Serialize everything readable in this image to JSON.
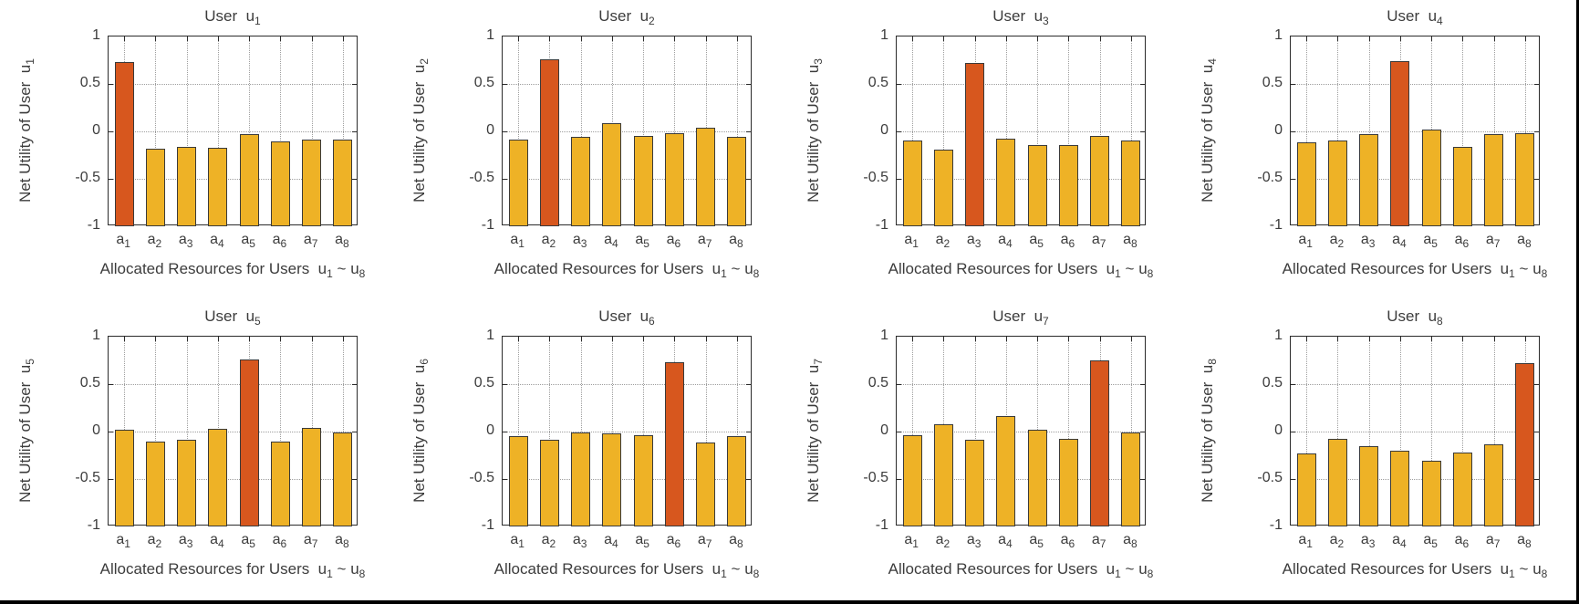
{
  "figure": {
    "background": "#ffffff",
    "frame_border_color": "#000000",
    "text_color": "#3c3c3c",
    "grid_color": "#9e9e9e",
    "axis_color": "#2b2b2b",
    "bar_fill": "#EEB226",
    "bar_highlight_fill": "#D7571E",
    "bar_edge": "#3a3a3a",
    "rows": 2,
    "cols": 4
  },
  "chart_data": [
    {
      "type": "bar",
      "title": "User  u_1",
      "ylabel": "Net Utility of User  u_1",
      "xlabel": "Allocated Resources for Users  u_1 ~ u_8",
      "categories": [
        "a_1",
        "a_2",
        "a_3",
        "a_4",
        "a_5",
        "a_6",
        "a_7",
        "a_8"
      ],
      "values": [
        0.73,
        -0.18,
        -0.16,
        -0.17,
        -0.03,
        -0.11,
        -0.09,
        -0.09
      ],
      "highlight_index": 0,
      "ylim": [
        -1,
        1
      ],
      "yticks": [
        1,
        0.5,
        0,
        -0.5,
        -1
      ],
      "ytick_labels": [
        "1",
        "0.5",
        "0",
        "-0.5",
        "-1"
      ],
      "baseline": -1,
      "grid": "dotted"
    },
    {
      "type": "bar",
      "title": "User  u_2",
      "ylabel": "Net Utility of User  u_2",
      "xlabel": "Allocated Resources for Users  u_1 ~ u_8",
      "categories": [
        "a_1",
        "a_2",
        "a_3",
        "a_4",
        "a_5",
        "a_6",
        "a_7",
        "a_8"
      ],
      "values": [
        -0.09,
        0.76,
        -0.06,
        0.09,
        -0.05,
        -0.02,
        0.04,
        -0.06
      ],
      "highlight_index": 1,
      "ylim": [
        -1,
        1
      ],
      "yticks": [
        1,
        0.5,
        0,
        -0.5,
        -1
      ],
      "ytick_labels": [
        "1",
        "0.5",
        "0",
        "-0.5",
        "-1"
      ],
      "baseline": -1,
      "grid": "dotted"
    },
    {
      "type": "bar",
      "title": "User  u_3",
      "ylabel": "Net Utility of User  u_3",
      "xlabel": "Allocated Resources for Users  u_1 ~ u_8",
      "categories": [
        "a_1",
        "a_2",
        "a_3",
        "a_4",
        "a_5",
        "a_6",
        "a_7",
        "a_8"
      ],
      "values": [
        -0.1,
        -0.19,
        0.72,
        -0.08,
        -0.14,
        -0.14,
        -0.05,
        -0.1
      ],
      "highlight_index": 2,
      "ylim": [
        -1,
        1
      ],
      "yticks": [
        1,
        0.5,
        0,
        -0.5,
        -1
      ],
      "ytick_labels": [
        "1",
        "0.5",
        "0",
        "-0.5",
        "-1"
      ],
      "baseline": -1,
      "grid": "dotted"
    },
    {
      "type": "bar",
      "title": "User  u_4",
      "ylabel": "Net Utility of User  u_4",
      "xlabel": "Allocated Resources for Users  u_1 ~ u_8",
      "categories": [
        "a_1",
        "a_2",
        "a_3",
        "a_4",
        "a_5",
        "a_6",
        "a_7",
        "a_8"
      ],
      "values": [
        -0.12,
        -0.1,
        -0.03,
        0.74,
        0.02,
        -0.16,
        -0.03,
        -0.02
      ],
      "highlight_index": 3,
      "ylim": [
        -1,
        1
      ],
      "yticks": [
        1,
        0.5,
        0,
        -0.5,
        -1
      ],
      "ytick_labels": [
        "1",
        "0.5",
        "0",
        "-0.5",
        "-1"
      ],
      "baseline": -1,
      "grid": "dotted"
    },
    {
      "type": "bar",
      "title": "User  u_5",
      "ylabel": "Net Utility of User  u_5",
      "xlabel": "Allocated Resources for Users  u_1 ~ u_8",
      "categories": [
        "a_1",
        "a_2",
        "a_3",
        "a_4",
        "a_5",
        "a_6",
        "a_7",
        "a_8"
      ],
      "values": [
        0.02,
        -0.11,
        -0.09,
        0.03,
        0.76,
        -0.11,
        0.04,
        -0.01
      ],
      "highlight_index": 4,
      "ylim": [
        -1,
        1
      ],
      "yticks": [
        1,
        0.5,
        0,
        -0.5,
        -1
      ],
      "ytick_labels": [
        "1",
        "0.5",
        "0",
        "-0.5",
        "-1"
      ],
      "baseline": -1,
      "grid": "dotted"
    },
    {
      "type": "bar",
      "title": "User  u_6",
      "ylabel": "Net Utility of User  u_6",
      "xlabel": "Allocated Resources for Users  u_1 ~ u_8",
      "categories": [
        "a_1",
        "a_2",
        "a_3",
        "a_4",
        "a_5",
        "a_6",
        "a_7",
        "a_8"
      ],
      "values": [
        -0.05,
        -0.09,
        -0.01,
        -0.02,
        -0.04,
        0.73,
        -0.12,
        -0.05
      ],
      "highlight_index": 5,
      "ylim": [
        -1,
        1
      ],
      "yticks": [
        1,
        0.5,
        0,
        -0.5,
        -1
      ],
      "ytick_labels": [
        "1",
        "0.5",
        "0",
        "-0.5",
        "-1"
      ],
      "baseline": -1,
      "grid": "dotted"
    },
    {
      "type": "bar",
      "title": "User  u_7",
      "ylabel": "Net Utility of User  u_7",
      "xlabel": "Allocated Resources for Users  u_1 ~ u_8",
      "categories": [
        "a_1",
        "a_2",
        "a_3",
        "a_4",
        "a_5",
        "a_6",
        "a_7",
        "a_8"
      ],
      "values": [
        -0.04,
        0.08,
        -0.09,
        0.16,
        0.02,
        -0.08,
        0.75,
        -0.01
      ],
      "highlight_index": 6,
      "ylim": [
        -1,
        1
      ],
      "yticks": [
        1,
        0.5,
        0,
        -0.5,
        -1
      ],
      "ytick_labels": [
        "1",
        "0.5",
        "0",
        "-0.5",
        "-1"
      ],
      "baseline": -1,
      "grid": "dotted"
    },
    {
      "type": "bar",
      "title": "User  u_8",
      "ylabel": "Net Utility of User  u_8",
      "xlabel": "Allocated Resources for Users  u_1 ~ u_8",
      "categories": [
        "a_1",
        "a_2",
        "a_3",
        "a_4",
        "a_5",
        "a_6",
        "a_7",
        "a_8"
      ],
      "values": [
        -0.23,
        -0.08,
        -0.15,
        -0.2,
        -0.31,
        -0.22,
        -0.13,
        0.72
      ],
      "highlight_index": 7,
      "ylim": [
        -1,
        1
      ],
      "yticks": [
        1,
        0.5,
        0,
        -0.5,
        -1
      ],
      "ytick_labels": [
        "1",
        "0.5",
        "0",
        "-0.5",
        "-1"
      ],
      "baseline": -1,
      "grid": "dotted"
    }
  ]
}
